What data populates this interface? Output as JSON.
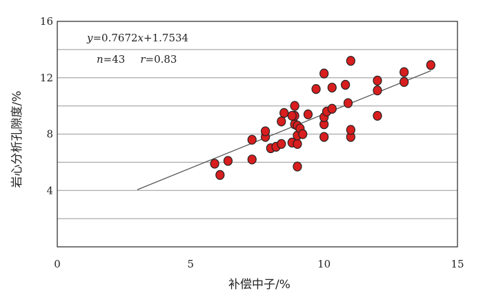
{
  "chart_data": {
    "type": "scatter",
    "title": "",
    "xlabel": "补偿中子/%",
    "ylabel": "岩心分析孔隙度/%",
    "xlim": [
      0,
      15
    ],
    "ylim": [
      0,
      16
    ],
    "xticks": [
      "0",
      "5",
      "10",
      "15"
    ],
    "yticks": [
      "4",
      "8",
      "12",
      "16"
    ],
    "grid": "horizontal lines at y = 2, 4, 6, 8, 10, 12, 14",
    "colors": {
      "marker_fill": "#d81e1e",
      "marker_stroke": "#222222",
      "fit_line": "#555555",
      "grid": "#aaaaaa"
    },
    "annotations": {
      "equation": {
        "y_var": "y",
        "eq_sign": "=0.7672",
        "x_var": "x",
        "tail": "+1.7534"
      },
      "stats": {
        "n_var": "n",
        "n_text": "=43",
        "r_var": "r",
        "r_text": "=0.83"
      }
    },
    "fit_line": {
      "slope": 0.7672,
      "intercept": 1.7534,
      "x_range": [
        3.0,
        14.0
      ]
    },
    "points": [
      [
        5.9,
        5.9
      ],
      [
        6.1,
        5.1
      ],
      [
        6.4,
        6.1
      ],
      [
        7.3,
        6.2
      ],
      [
        7.3,
        7.6
      ],
      [
        7.8,
        7.8
      ],
      [
        7.8,
        8.2
      ],
      [
        8.0,
        7.0
      ],
      [
        8.2,
        7.1
      ],
      [
        8.4,
        7.3
      ],
      [
        8.4,
        8.9
      ],
      [
        8.5,
        9.5
      ],
      [
        8.8,
        7.4
      ],
      [
        8.9,
        8.7
      ],
      [
        8.9,
        9.3
      ],
      [
        8.9,
        10.0
      ],
      [
        9.0,
        5.7
      ],
      [
        9.0,
        7.3
      ],
      [
        9.0,
        7.9
      ],
      [
        9.0,
        8.6
      ],
      [
        9.1,
        8.4
      ],
      [
        9.2,
        8.0
      ],
      [
        9.4,
        9.4
      ],
      [
        9.7,
        11.2
      ],
      [
        10.0,
        7.8
      ],
      [
        10.0,
        8.7
      ],
      [
        10.0,
        9.2
      ],
      [
        10.0,
        12.3
      ],
      [
        10.1,
        9.6
      ],
      [
        10.3,
        9.8
      ],
      [
        10.3,
        11.3
      ],
      [
        10.8,
        11.5
      ],
      [
        10.9,
        10.2
      ],
      [
        11.0,
        7.8
      ],
      [
        11.0,
        8.3
      ],
      [
        11.0,
        13.2
      ],
      [
        12.0,
        9.3
      ],
      [
        12.0,
        11.1
      ],
      [
        12.0,
        11.8
      ],
      [
        13.0,
        11.7
      ],
      [
        13.0,
        12.4
      ],
      [
        14.0,
        12.9
      ],
      [
        8.8,
        9.3
      ]
    ]
  }
}
